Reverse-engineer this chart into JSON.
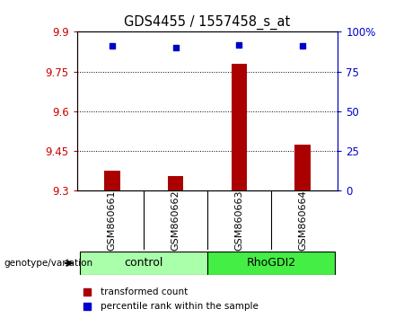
{
  "title": "GDS4455 / 1557458_s_at",
  "samples": [
    "GSM860661",
    "GSM860662",
    "GSM860663",
    "GSM860664"
  ],
  "transformed_counts": [
    9.375,
    9.355,
    9.78,
    9.475
  ],
  "percentile_ranks": [
    91,
    90,
    92,
    91
  ],
  "groups": [
    {
      "name": "control",
      "indices": [
        0,
        1
      ],
      "color": "#aaffaa"
    },
    {
      "name": "RhoGDI2",
      "indices": [
        2,
        3
      ],
      "color": "#44ee44"
    }
  ],
  "ylim_left": [
    9.3,
    9.9
  ],
  "ylim_right": [
    0,
    100
  ],
  "yticks_left": [
    9.3,
    9.45,
    9.6,
    9.75,
    9.9
  ],
  "yticks_right": [
    0,
    25,
    50,
    75,
    100
  ],
  "ytick_labels_left": [
    "9.3",
    "9.45",
    "9.6",
    "9.75",
    "9.9"
  ],
  "ytick_labels_right": [
    "0",
    "25",
    "50",
    "75",
    "100%"
  ],
  "left_axis_color": "#cc0000",
  "right_axis_color": "#0000cc",
  "bar_color": "#aa0000",
  "square_color": "#0000cc",
  "grid_color": "#000000",
  "plot_bg": "#ffffff",
  "label_area_bg": "#cccccc",
  "legend_bar_label": "transformed count",
  "legend_dot_label": "percentile rank within the sample",
  "group_label": "genotype/variation",
  "bar_width": 0.25
}
